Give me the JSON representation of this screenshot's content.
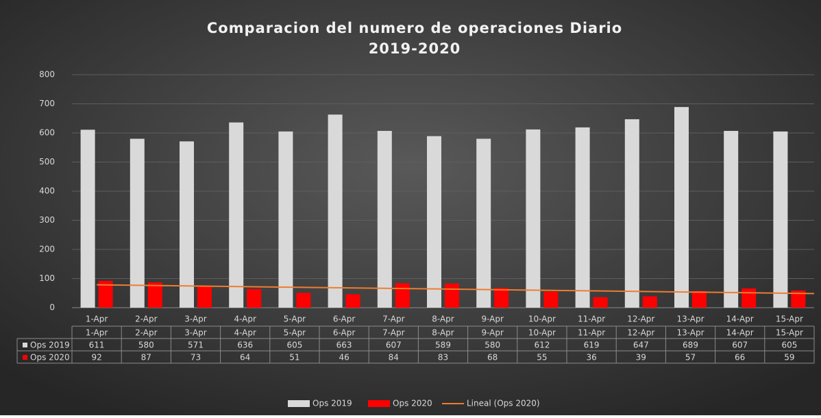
{
  "chart_data": {
    "type": "bar",
    "title": "Comparacion del numero de operaciones Diario",
    "subtitle": "2019-2020",
    "categories": [
      "1-Apr",
      "2-Apr",
      "3-Apr",
      "4-Apr",
      "5-Apr",
      "6-Apr",
      "7-Apr",
      "8-Apr",
      "9-Apr",
      "10-Apr",
      "11-Apr",
      "12-Apr",
      "13-Apr",
      "14-Apr",
      "15-Apr"
    ],
    "series": [
      {
        "name": "Ops 2019",
        "color": "#d9d9d9",
        "values": [
          611,
          580,
          571,
          636,
          605,
          663,
          607,
          589,
          580,
          612,
          619,
          647,
          689,
          607,
          605
        ]
      },
      {
        "name": "Ops 2020",
        "color": "#ff0000",
        "values": [
          92,
          87,
          73,
          64,
          51,
          46,
          84,
          83,
          68,
          55,
          36,
          39,
          57,
          66,
          59
        ]
      }
    ],
    "trendline": {
      "name": "Lineal (Ops 2020)",
      "color": "#ed7d31",
      "series": 1
    },
    "ylim": [
      0,
      800
    ],
    "yticks": [
      0,
      100,
      200,
      300,
      400,
      500,
      600,
      700,
      800
    ],
    "grid": true,
    "data_table": true,
    "legend": "bottom"
  }
}
